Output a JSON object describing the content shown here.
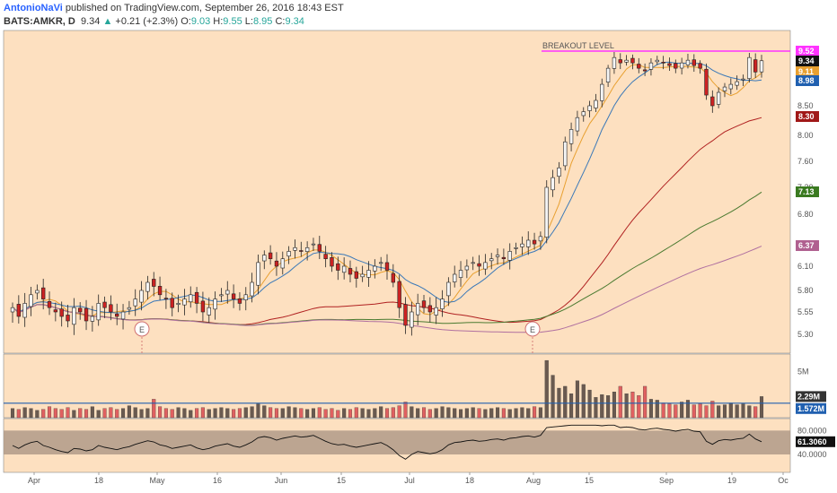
{
  "header": {
    "author": "AntonioNaVi",
    "published_text": " published on TradingView.com, September 26, 2016 18:43 EST",
    "symbol": "BATS:AMKR, D",
    "last": "9.34",
    "change_arrow": "▲",
    "change": "+0.21 (+2.3%)",
    "o_label": "O:",
    "o_value": "9.03",
    "h_label": "H:",
    "h_value": "9.55",
    "l_label": "L:",
    "l_value": "8.95",
    "c_label": "C:",
    "c_value": "9.34"
  },
  "colors": {
    "background": "#fde0c0",
    "up": "#f5f5f5",
    "down": "#cc2222",
    "ma_orange": "#e8a030",
    "ma_blue": "#3a78b8",
    "ma_red": "#b02020",
    "ma_green": "#4a7a30",
    "ma_purple": "#b070a0",
    "breakout": "#ff33ff"
  },
  "chart_data": [
    {
      "type": "candlestick",
      "title": "BATS:AMKR, D",
      "y_axis_ticks": [
        "9.52",
        "8.50",
        "8.00",
        "7.60",
        "7.20",
        "6.80",
        "6.10",
        "5.80",
        "5.55",
        "5.30"
      ],
      "x_axis_ticks": [
        "Apr",
        "18",
        "May",
        "16",
        "Jun",
        "15",
        "Jul",
        "18",
        "Aug",
        "15",
        "Sep",
        "19",
        "Oc"
      ],
      "axis_tags": [
        {
          "value": "9.52",
          "color": "#ff33ff"
        },
        {
          "value": "9.34",
          "color": "#111111"
        },
        {
          "value": "9.11",
          "color": "#e8a030"
        },
        {
          "value": "8.98",
          "color": "#2060b0"
        },
        {
          "value": "8.30",
          "color": "#a01818"
        },
        {
          "value": "7.13",
          "color": "#3a7a20"
        },
        {
          "value": "6.37",
          "color": "#b06090"
        }
      ],
      "annotation": "BREAKOUT LEVEL",
      "breakout_level": 9.52,
      "earnings_markers": [
        {
          "x": "May 2",
          "label": "E"
        },
        {
          "x": "Aug 1",
          "label": "E"
        }
      ],
      "candles_close": [
        5.6,
        5.5,
        5.65,
        5.75,
        5.8,
        5.7,
        5.6,
        5.55,
        5.5,
        5.45,
        5.6,
        5.55,
        5.45,
        5.5,
        5.65,
        5.6,
        5.55,
        5.5,
        5.55,
        5.6,
        5.7,
        5.8,
        5.9,
        5.85,
        5.75,
        5.7,
        5.6,
        5.65,
        5.7,
        5.75,
        5.65,
        5.55,
        5.6,
        5.7,
        5.75,
        5.8,
        5.7,
        5.65,
        5.75,
        5.9,
        6.15,
        6.25,
        6.2,
        6.1,
        6.2,
        6.3,
        6.35,
        6.3,
        6.35,
        6.4,
        6.3,
        6.2,
        6.1,
        6.05,
        6.1,
        6.0,
        5.95,
        6.0,
        6.05,
        6.1,
        6.15,
        6.05,
        5.9,
        5.6,
        5.4,
        5.55,
        5.65,
        5.6,
        5.55,
        5.6,
        5.7,
        5.9,
        6.0,
        6.05,
        6.1,
        6.15,
        6.1,
        6.15,
        6.2,
        6.25,
        6.2,
        6.3,
        6.35,
        6.4,
        6.45,
        6.4,
        6.5,
        7.2,
        7.35,
        7.5,
        7.9,
        8.1,
        8.3,
        8.4,
        8.5,
        8.6,
        8.9,
        9.2,
        9.4,
        9.3,
        9.35,
        9.3,
        9.2,
        9.15,
        9.3,
        9.35,
        9.3,
        9.25,
        9.2,
        9.3,
        9.35,
        9.25,
        9.2,
        8.7,
        8.5,
        8.75,
        8.85,
        8.9,
        8.95,
        9.0,
        9.4,
        9.13,
        9.34
      ],
      "series": [
        {
          "name": "MA10",
          "color": "#e8a030",
          "last": 9.11
        },
        {
          "name": "MA20",
          "color": "#3a78b8",
          "last": 8.98
        },
        {
          "name": "MA50",
          "color": "#b02020",
          "last": 8.3
        },
        {
          "name": "MA100",
          "color": "#4a7a30",
          "last": 7.13
        },
        {
          "name": "MA200",
          "color": "#b070a0",
          "last": 6.37
        }
      ]
    },
    {
      "type": "bar",
      "title": "Volume",
      "y_axis_ticks": [
        "5M"
      ],
      "axis_tags": [
        {
          "value": "2.29M",
          "color": "#333333"
        },
        {
          "value": "1.572M",
          "color": "#2060b0"
        }
      ],
      "volume_millions": [
        1.0,
        0.9,
        1.1,
        1.0,
        0.8,
        0.9,
        1.2,
        1.0,
        0.9,
        1.1,
        0.8,
        1.0,
        0.9,
        1.2,
        0.8,
        1.0,
        1.1,
        0.9,
        1.0,
        1.3,
        1.1,
        0.9,
        1.0,
        2.0,
        1.2,
        1.0,
        0.9,
        1.1,
        1.0,
        0.8,
        1.0,
        1.1,
        0.9,
        1.0,
        1.1,
        1.0,
        0.9,
        1.0,
        1.1,
        1.2,
        1.5,
        1.3,
        1.1,
        1.0,
        1.0,
        1.2,
        1.1,
        1.0,
        0.9,
        1.0,
        1.1,
        0.9,
        1.0,
        0.8,
        1.0,
        0.9,
        1.1,
        1.0,
        0.9,
        1.0,
        1.2,
        1.0,
        1.1,
        1.3,
        1.7,
        1.2,
        1.0,
        1.1,
        0.9,
        1.0,
        1.2,
        1.1,
        1.0,
        0.9,
        1.0,
        1.1,
        1.0,
        0.9,
        1.0,
        1.1,
        1.0,
        0.9,
        1.0,
        1.1,
        1.0,
        1.2,
        1.1,
        6.2,
        4.6,
        3.2,
        3.4,
        2.6,
        4.0,
        3.6,
        3.0,
        2.2,
        2.5,
        2.4,
        2.8,
        3.4,
        2.6,
        2.8,
        2.4,
        3.4,
        2.0,
        1.9,
        1.6,
        1.5,
        1.4,
        1.7,
        1.9,
        1.4,
        1.5,
        1.3,
        1.8,
        1.3,
        1.4,
        1.6,
        1.4,
        1.5,
        1.3,
        1.2,
        2.29
      ],
      "average_line": 1.572
    },
    {
      "type": "line",
      "title": "RSI",
      "y_axis_ticks": [
        "80.0000",
        "40.0000"
      ],
      "axis_tags": [
        {
          "value": "61.3060",
          "color": "#111111"
        }
      ],
      "band": [
        40,
        80
      ],
      "values": [
        55,
        50,
        56,
        60,
        62,
        55,
        52,
        48,
        45,
        43,
        50,
        49,
        46,
        48,
        55,
        52,
        50,
        48,
        51,
        53,
        57,
        60,
        63,
        61,
        56,
        54,
        50,
        52,
        54,
        56,
        51,
        48,
        50,
        54,
        56,
        58,
        54,
        52,
        56,
        61,
        68,
        70,
        68,
        64,
        67,
        69,
        71,
        69,
        70,
        72,
        67,
        62,
        58,
        56,
        57,
        54,
        52,
        54,
        56,
        58,
        60,
        55,
        48,
        38,
        32,
        40,
        45,
        43,
        41,
        43,
        48,
        56,
        60,
        61,
        63,
        64,
        62,
        63,
        65,
        66,
        64,
        67,
        68,
        70,
        71,
        69,
        72,
        85,
        86,
        87,
        88,
        89,
        89,
        89,
        89,
        89,
        88,
        89,
        89,
        85,
        86,
        85,
        82,
        81,
        83,
        84,
        82,
        81,
        79,
        81,
        82,
        79,
        78,
        62,
        57,
        63,
        65,
        64,
        66,
        67,
        74,
        66,
        61.306
      ]
    }
  ]
}
